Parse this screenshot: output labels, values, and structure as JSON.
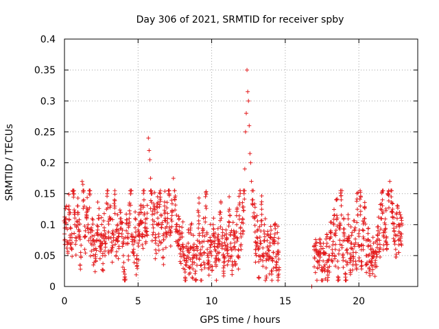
{
  "chart_data": {
    "type": "scatter",
    "title": "Day 306 of 2021, SRMTID for receiver spby",
    "xlabel": "GPS time / hours",
    "ylabel": "SRMTID / TECUs",
    "xlim": [
      0,
      24
    ],
    "ylim": [
      0,
      0.4
    ],
    "xticks": [
      0,
      5,
      10,
      15,
      20
    ],
    "xtick_labels": [
      "0",
      "5",
      "10",
      "15",
      "20"
    ],
    "yticks": [
      0,
      0.05,
      0.1,
      0.15,
      0.2,
      0.25,
      0.3,
      0.35,
      0.4
    ],
    "ytick_labels": [
      "0",
      "0.05",
      "0.1",
      "0.15",
      "0.2",
      "0.25",
      "0.3",
      "0.35",
      "0.4"
    ],
    "grid": true,
    "marker": "+",
    "color": "#e31a1c",
    "gap_hours": [
      14.6,
      16.7
    ],
    "series": [
      {
        "name": "SRMTID",
        "points": [
          [
            0.0,
            0.085
          ],
          [
            0.1,
            0.11
          ],
          [
            0.2,
            0.072
          ],
          [
            0.3,
            0.13
          ],
          [
            0.4,
            0.095
          ],
          [
            0.5,
            0.06
          ],
          [
            0.6,
            0.15
          ],
          [
            0.7,
            0.1
          ],
          [
            0.8,
            0.078
          ],
          [
            0.9,
            0.12
          ],
          [
            1.0,
            0.09
          ],
          [
            1.1,
            0.055
          ],
          [
            1.2,
            0.17
          ],
          [
            1.25,
            0.165
          ],
          [
            1.3,
            0.14
          ],
          [
            1.4,
            0.08
          ],
          [
            1.5,
            0.12
          ],
          [
            1.6,
            0.1
          ],
          [
            1.7,
            0.15
          ],
          [
            1.8,
            0.07
          ],
          [
            1.9,
            0.09
          ],
          [
            2.0,
            0.06
          ],
          [
            2.1,
            0.045
          ],
          [
            2.2,
            0.075
          ],
          [
            2.3,
            0.11
          ],
          [
            2.4,
            0.065
          ],
          [
            2.5,
            0.085
          ],
          [
            2.6,
            0.05
          ],
          [
            2.7,
            0.095
          ],
          [
            2.8,
            0.07
          ],
          [
            2.9,
            0.15
          ],
          [
            3.0,
            0.08
          ],
          [
            3.1,
            0.11
          ],
          [
            3.2,
            0.06
          ],
          [
            3.3,
            0.09
          ],
          [
            3.4,
            0.14
          ],
          [
            3.5,
            0.075
          ],
          [
            3.6,
            0.1
          ],
          [
            3.7,
            0.065
          ],
          [
            3.8,
            0.12
          ],
          [
            3.9,
            0.085
          ],
          [
            4.0,
            0.05
          ],
          [
            4.1,
            0.02
          ],
          [
            4.2,
            0.09
          ],
          [
            4.3,
            0.07
          ],
          [
            4.4,
            0.11
          ],
          [
            4.5,
            0.15
          ],
          [
            4.6,
            0.08
          ],
          [
            4.7,
            0.06
          ],
          [
            4.8,
            0.095
          ],
          [
            4.9,
            0.045
          ],
          [
            5.0,
            0.07
          ],
          [
            5.1,
            0.1
          ],
          [
            5.2,
            0.12
          ],
          [
            5.3,
            0.08
          ],
          [
            5.4,
            0.14
          ],
          [
            5.5,
            0.09
          ],
          [
            5.6,
            0.11
          ],
          [
            5.7,
            0.24
          ],
          [
            5.75,
            0.22
          ],
          [
            5.8,
            0.205
          ],
          [
            5.85,
            0.175
          ],
          [
            5.9,
            0.15
          ],
          [
            6.0,
            0.1
          ],
          [
            6.1,
            0.13
          ],
          [
            6.2,
            0.07
          ],
          [
            6.3,
            0.12
          ],
          [
            6.4,
            0.085
          ],
          [
            6.5,
            0.15
          ],
          [
            6.6,
            0.095
          ],
          [
            6.7,
            0.06
          ],
          [
            6.8,
            0.13
          ],
          [
            6.9,
            0.08
          ],
          [
            7.0,
            0.11
          ],
          [
            7.1,
            0.15
          ],
          [
            7.2,
            0.09
          ],
          [
            7.3,
            0.12
          ],
          [
            7.4,
            0.175
          ],
          [
            7.5,
            0.14
          ],
          [
            7.6,
            0.1
          ],
          [
            7.7,
            0.07
          ],
          [
            7.8,
            0.09
          ],
          [
            7.9,
            0.06
          ],
          [
            8.0,
            0.08
          ],
          [
            8.1,
            0.05
          ],
          [
            8.2,
            0.015
          ],
          [
            8.3,
            0.045
          ],
          [
            8.4,
            0.07
          ],
          [
            8.5,
            0.03
          ],
          [
            8.6,
            0.085
          ],
          [
            8.7,
            0.04
          ],
          [
            8.8,
            0.06
          ],
          [
            8.9,
            0.025
          ],
          [
            9.0,
            0.05
          ],
          [
            9.1,
            0.12
          ],
          [
            9.2,
            0.07
          ],
          [
            9.3,
            0.035
          ],
          [
            9.4,
            0.09
          ],
          [
            9.5,
            0.055
          ],
          [
            9.6,
            0.13
          ],
          [
            9.7,
            0.06
          ],
          [
            9.8,
            0.04
          ],
          [
            9.9,
            0.075
          ],
          [
            10.0,
            0.05
          ],
          [
            10.1,
            0.1
          ],
          [
            10.2,
            0.065
          ],
          [
            10.3,
            0.035
          ],
          [
            10.4,
            0.08
          ],
          [
            10.5,
            0.055
          ],
          [
            10.6,
            0.12
          ],
          [
            10.7,
            0.07
          ],
          [
            10.8,
            0.03
          ],
          [
            10.9,
            0.06
          ],
          [
            11.0,
            0.085
          ],
          [
            11.1,
            0.05
          ],
          [
            11.2,
            0.125
          ],
          [
            11.3,
            0.07
          ],
          [
            11.4,
            0.04
          ],
          [
            11.5,
            0.09
          ],
          [
            11.6,
            0.06
          ],
          [
            11.7,
            0.1
          ],
          [
            11.8,
            0.05
          ],
          [
            11.9,
            0.135
          ],
          [
            12.0,
            0.08
          ],
          [
            12.1,
            0.11
          ],
          [
            12.2,
            0.15
          ],
          [
            12.25,
            0.19
          ],
          [
            12.3,
            0.25
          ],
          [
            12.35,
            0.28
          ],
          [
            12.4,
            0.35
          ],
          [
            12.45,
            0.315
          ],
          [
            12.5,
            0.3
          ],
          [
            12.55,
            0.26
          ],
          [
            12.6,
            0.215
          ],
          [
            12.65,
            0.2
          ],
          [
            12.7,
            0.17
          ],
          [
            12.8,
            0.14
          ],
          [
            12.9,
            0.11
          ],
          [
            13.0,
            0.06
          ],
          [
            13.1,
            0.09
          ],
          [
            13.2,
            0.04
          ],
          [
            13.3,
            0.07
          ],
          [
            13.4,
            0.125
          ],
          [
            13.5,
            0.05
          ],
          [
            13.6,
            0.085
          ],
          [
            13.7,
            0.03
          ],
          [
            13.8,
            0.065
          ],
          [
            13.9,
            0.045
          ],
          [
            14.0,
            0.08
          ],
          [
            14.1,
            0.025
          ],
          [
            14.2,
            0.055
          ],
          [
            14.3,
            0.1
          ],
          [
            14.4,
            0.04
          ],
          [
            14.5,
            0.07
          ],
          [
            14.55,
            0.02
          ],
          [
            16.8,
            0.0
          ],
          [
            17.0,
            0.045
          ],
          [
            17.1,
            0.06
          ],
          [
            17.2,
            0.03
          ],
          [
            17.3,
            0.05
          ],
          [
            17.4,
            0.07
          ],
          [
            17.5,
            0.025
          ],
          [
            17.6,
            0.055
          ],
          [
            17.7,
            0.035
          ],
          [
            17.8,
            0.065
          ],
          [
            17.9,
            0.015
          ],
          [
            18.0,
            0.05
          ],
          [
            18.1,
            0.08
          ],
          [
            18.2,
            0.04
          ],
          [
            18.3,
            0.1
          ],
          [
            18.4,
            0.06
          ],
          [
            18.5,
            0.115
          ],
          [
            18.6,
            0.03
          ],
          [
            18.7,
            0.075
          ],
          [
            18.8,
            0.14
          ],
          [
            18.9,
            0.05
          ],
          [
            19.0,
            0.085
          ],
          [
            19.1,
            0.02
          ],
          [
            19.2,
            0.06
          ],
          [
            19.3,
            0.1
          ],
          [
            19.4,
            0.045
          ],
          [
            19.5,
            0.07
          ],
          [
            19.6,
            0.035
          ],
          [
            19.7,
            0.09
          ],
          [
            19.8,
            0.055
          ],
          [
            19.9,
            0.125
          ],
          [
            20.0,
            0.065
          ],
          [
            20.1,
            0.13
          ],
          [
            20.2,
            0.04
          ],
          [
            20.3,
            0.08
          ],
          [
            20.4,
            0.11
          ],
          [
            20.5,
            0.05
          ],
          [
            20.6,
            0.075
          ],
          [
            20.7,
            0.03
          ],
          [
            20.8,
            0.06
          ],
          [
            20.9,
            0.045
          ],
          [
            21.0,
            0.07
          ],
          [
            21.1,
            0.035
          ],
          [
            21.2,
            0.055
          ],
          [
            21.3,
            0.09
          ],
          [
            21.4,
            0.06
          ],
          [
            21.5,
            0.11
          ],
          [
            21.6,
            0.14
          ],
          [
            21.7,
            0.08
          ],
          [
            21.8,
            0.1
          ],
          [
            21.9,
            0.06
          ],
          [
            22.0,
            0.15
          ],
          [
            22.1,
            0.17
          ],
          [
            22.2,
            0.145
          ],
          [
            22.3,
            0.12
          ],
          [
            22.4,
            0.09
          ],
          [
            22.5,
            0.06
          ],
          [
            22.6,
            0.11
          ],
          [
            22.7,
            0.075
          ],
          [
            22.8,
            0.1
          ],
          [
            22.9,
            0.085
          ]
        ]
      }
    ]
  }
}
